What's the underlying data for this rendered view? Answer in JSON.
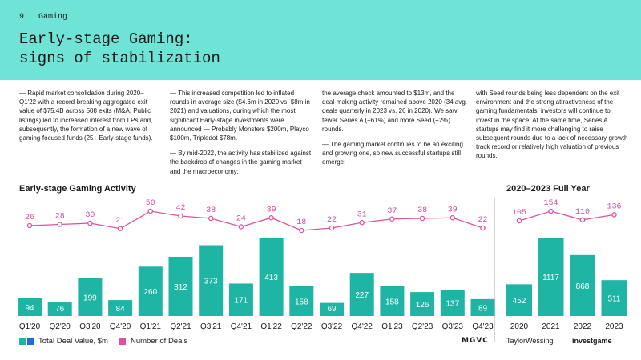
{
  "header": {
    "page_number": "9",
    "section": "Gaming",
    "title": "Early-stage Gaming:\nsigns of stabilization"
  },
  "text": {
    "col1": "— Rapid market consolidation during 2020–Q1'22 with a record-breaking aggregated exit value of $75.4B across 508 exits (M&A, Public listings) led to increased interest from LPs and, subsequently, the formation of a new wave of gaming-focused funds (25+ Early-stage funds).",
    "col2_p1": "— This increased competition led to inflated rounds in average size ($4.6m in 2020 vs. $8m in 2021) and valuations, during which the most significant Early-stage investments were announced — Probably Monsters $200m, Playco $100m, Tripledot $78m.",
    "col2_p2": "— By mid-2022, the activity has stabilized against the backdrop of changes in the gaming market and the macroeconomy:",
    "col3_p1": "the average check amounted to $13m, and the deal-making activity remained above 2020 (34 avg. deals quarterly in 2023 vs. 26 in 2020). We saw fewer Series A (−61%) and more Seed (+2%) rounds.",
    "col3_p2": "— The gaming market continues to be an exciting and growing one, so new successful startups still emerge:",
    "col4": "with Seed rounds being less dependent on the exit environment and the strong attractiveness of the gaming fundamentals, investors will continue to invest in the space. At the same time, Series A startups may find it more challenging to raise subsequent rounds due to a lack of necessary growth track record or relatively high valuation of previous rounds."
  },
  "colors": {
    "teal": "#1fb5a5",
    "blue": "#1e6dd6",
    "pink": "#e0509f",
    "header_bg": "#6ee3d6"
  },
  "chart_data": [
    {
      "type": "bar",
      "title": "Early-stage Gaming Activity",
      "categories": [
        "Q1'20",
        "Q2'20",
        "Q3'20",
        "Q4'20",
        "Q1'21",
        "Q2'21",
        "Q3'21",
        "Q4'21",
        "Q1'22",
        "Q2'22",
        "Q3'22",
        "Q4'22",
        "Q1'23",
        "Q2'23",
        "Q3'23",
        "Q4'23"
      ],
      "series": [
        {
          "name": "Total Deal Value, $m",
          "kind": "bar",
          "values": [
            94,
            76,
            199,
            84,
            260,
            312,
            373,
            171,
            413,
            158,
            69,
            227,
            158,
            126,
            137,
            89
          ]
        },
        {
          "name": "Number of Deals",
          "kind": "line",
          "values": [
            26,
            28,
            30,
            21,
            50,
            42,
            38,
            24,
            39,
            18,
            22,
            31,
            37,
            38,
            39,
            22
          ]
        }
      ]
    },
    {
      "type": "bar",
      "title": "2020–2023 Full Year",
      "categories": [
        "2020",
        "2021",
        "2022",
        "2023"
      ],
      "series": [
        {
          "name": "Total Deal Value, $m",
          "kind": "bar",
          "values": [
            452,
            1117,
            868,
            511
          ]
        },
        {
          "name": "Number of Deals",
          "kind": "line",
          "values": [
            105,
            154,
            110,
            136
          ]
        }
      ]
    }
  ],
  "legend": {
    "value_label": "Total Deal Value, $m",
    "deals_label": "Number of Deals"
  },
  "logos": {
    "logo1": "MGVC",
    "logo2": "TaylorWessing",
    "logo3": "investgame"
  }
}
